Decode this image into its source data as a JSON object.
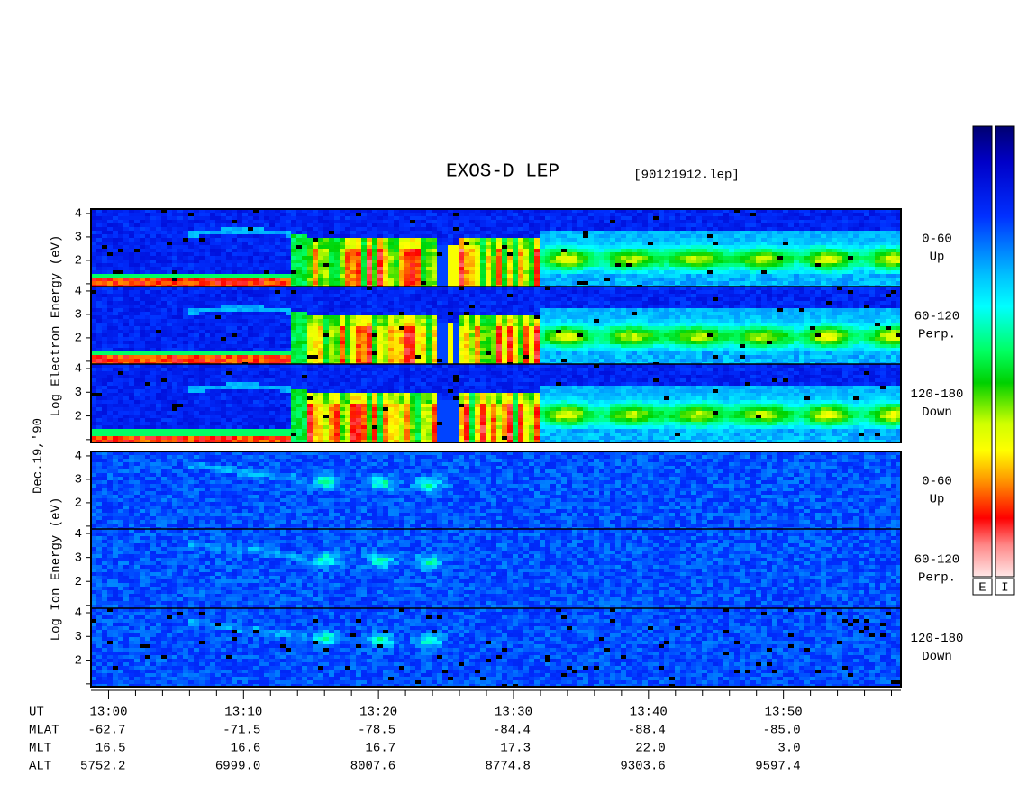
{
  "chart_data": {
    "type": "spectrogram",
    "title": "EXOS-D LEP",
    "subtitle": "[90121912.lep]",
    "date_label": "Dec.19,'90",
    "xlim": [
      778.7,
      838.7
    ],
    "xticks": [
      {
        "value": 780,
        "label": "13:00"
      },
      {
        "value": 790,
        "label": "13:10"
      },
      {
        "value": 800,
        "label": "13:20"
      },
      {
        "value": 810,
        "label": "13:30"
      },
      {
        "value": 820,
        "label": "13:40"
      },
      {
        "value": 830,
        "label": "13:50"
      }
    ],
    "xminorticks": [
      782,
      784,
      786,
      788,
      792,
      794,
      796,
      798,
      802,
      804,
      806,
      808,
      812,
      814,
      816,
      818,
      822,
      824,
      826,
      828,
      832,
      834,
      836,
      838
    ],
    "ylim": [
      0.88,
      4.19
    ],
    "yticks": [
      2,
      3,
      4
    ],
    "yminorticks": [
      1
    ],
    "groups": [
      {
        "ylabel": "Log Electron Energy (eV)",
        "species": "electron",
        "panels": [
          {
            "angle": "0-60",
            "direction": "Up"
          },
          {
            "angle": "60-120",
            "direction": "Perp."
          },
          {
            "angle": "120-180",
            "direction": "Down"
          }
        ]
      },
      {
        "ylabel": "Log Ion Energy (eV)",
        "species": "ion",
        "panels": [
          {
            "angle": "0-60",
            "direction": "Up"
          },
          {
            "angle": "60-120",
            "direction": "Perp."
          },
          {
            "angle": "120-180",
            "direction": "Down"
          }
        ]
      }
    ],
    "orbit": {
      "x_label": "UT",
      "rows": [
        {
          "name": "MLAT",
          "values": [
            "-62.7",
            "-71.5",
            "-78.5",
            "-84.4",
            "-88.4",
            "-85.0"
          ]
        },
        {
          "name": "MLT",
          "values": [
            "16.5",
            "16.6",
            "16.7",
            "17.3",
            "22.0",
            "3.0"
          ]
        },
        {
          "name": "ALT",
          "values": [
            "5752.2",
            "6999.0",
            "8007.6",
            "8774.8",
            "9303.6",
            "9597.4"
          ]
        }
      ]
    },
    "colorbars": [
      {
        "label": "E"
      },
      {
        "label": "I"
      }
    ]
  }
}
